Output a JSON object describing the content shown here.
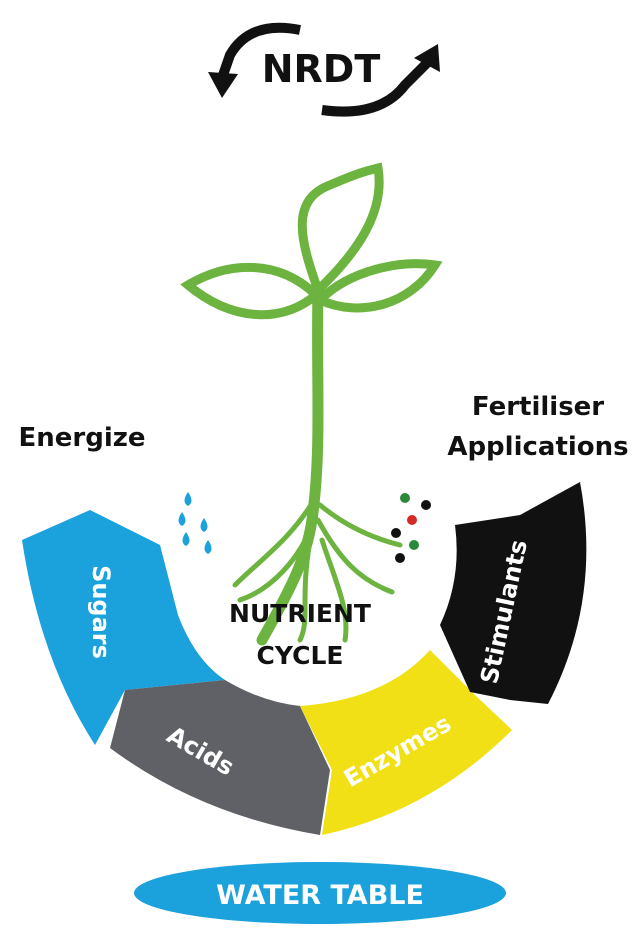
{
  "logo": {
    "text": "NRDT"
  },
  "labels": {
    "left": "Energize",
    "right": [
      "Fertiliser",
      "Applications"
    ]
  },
  "segments": [
    {
      "label": "Sugars"
    },
    {
      "label": "Acids"
    },
    {
      "label": "Enzymes"
    },
    {
      "label": "Stimulants"
    }
  ],
  "center": [
    "NUTRIENT",
    "CYCLE"
  ],
  "footer": "WATER TABLE"
}
